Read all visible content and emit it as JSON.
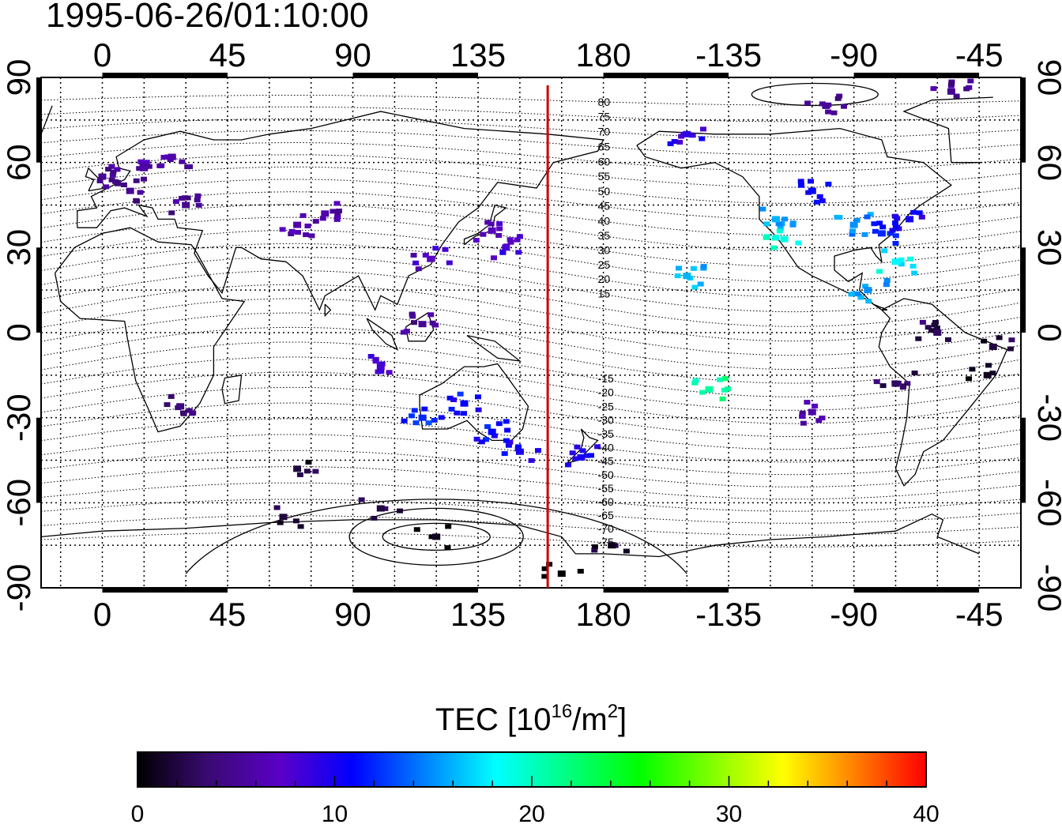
{
  "title": "1995-06-26/01:10:00",
  "colorbar": {
    "label_prefix": "TEC  [10",
    "label_exp1": "16",
    "label_mid": "/m",
    "label_exp2": "2",
    "label_suffix": "]",
    "ticks": [
      "0",
      "10",
      "20",
      "30",
      "40"
    ],
    "stops": [
      "#000000",
      "#3a0a73",
      "#5a00c8",
      "#0000ff",
      "#0080ff",
      "#00ffff",
      "#00ff80",
      "#00ff00",
      "#80ff00",
      "#ffff00",
      "#ff8000",
      "#ff0000"
    ]
  },
  "map": {
    "lon_ticks": [
      "0",
      "45",
      "90",
      "135",
      "180",
      "-135",
      "-90",
      "-45"
    ],
    "lat_ticks_left": [
      "90",
      "60",
      "30",
      "0",
      "-30",
      "-60",
      "-90"
    ],
    "lat_ticks_right": [
      "90",
      "60",
      "30",
      "0",
      "-30",
      "-60",
      "-90"
    ],
    "contour_labels": [
      "80",
      "75",
      "70",
      "65",
      "60",
      "55",
      "50",
      "45",
      "40",
      "35",
      "30",
      "25",
      "20",
      "15",
      "-15",
      "-20",
      "-25",
      "-30",
      "-35",
      "-40",
      "-45",
      "-50",
      "-55",
      "-60",
      "-65",
      "-70",
      "-75"
    ],
    "terminator_color": "#cc0000",
    "terminator_lon": 160
  },
  "chart_data": {
    "type": "heatmap",
    "title": "1995-06-26/01:10:00",
    "colorbar_label": "TEC [10^16/m^2]",
    "color_range": [
      0,
      40
    ],
    "xlim": [
      -22,
      330
    ],
    "ylim": [
      -90,
      90
    ],
    "observations": [
      {
        "lon": 0,
        "lat": 55,
        "tec": 5
      },
      {
        "lon": 10,
        "lat": 50,
        "tec": 5
      },
      {
        "lon": 15,
        "lat": 58,
        "tec": 6
      },
      {
        "lon": 25,
        "lat": 62,
        "tec": 6
      },
      {
        "lon": 30,
        "lat": 45,
        "tec": 5
      },
      {
        "lon": 70,
        "lat": 38,
        "tec": 6
      },
      {
        "lon": 80,
        "lat": 42,
        "tec": 6
      },
      {
        "lon": 28,
        "lat": -26,
        "tec": 4
      },
      {
        "lon": 70,
        "lat": -48,
        "tec": 2
      },
      {
        "lon": 65,
        "lat": -65,
        "tec": 2
      },
      {
        "lon": 100,
        "lat": -62,
        "tec": 2
      },
      {
        "lon": 120,
        "lat": -72,
        "tec": 1
      },
      {
        "lon": 165,
        "lat": -85,
        "tec": 0
      },
      {
        "lon": 183,
        "lat": -75,
        "tec": 1
      },
      {
        "lon": 140,
        "lat": 36,
        "tec": 7
      },
      {
        "lon": 145,
        "lat": 30,
        "tec": 8
      },
      {
        "lon": 118,
        "lat": 26,
        "tec": 7
      },
      {
        "lon": 115,
        "lat": 3,
        "tec": 5
      },
      {
        "lon": 100,
        "lat": -12,
        "tec": 8
      },
      {
        "lon": 115,
        "lat": -30,
        "tec": 12
      },
      {
        "lon": 130,
        "lat": -25,
        "tec": 11
      },
      {
        "lon": 140,
        "lat": -35,
        "tec": 11
      },
      {
        "lon": 150,
        "lat": -42,
        "tec": 10
      },
      {
        "lon": 172,
        "lat": -44,
        "tec": 10
      },
      {
        "lon": 210,
        "lat": 70,
        "tec": 9
      },
      {
        "lon": 210,
        "lat": 20,
        "tec": 16
      },
      {
        "lon": 218,
        "lat": -20,
        "tec": 21
      },
      {
        "lon": 242,
        "lat": 40,
        "tec": 16
      },
      {
        "lon": 245,
        "lat": 33,
        "tec": 19
      },
      {
        "lon": 255,
        "lat": 50,
        "tec": 11
      },
      {
        "lon": 270,
        "lat": 38,
        "tec": 15
      },
      {
        "lon": 280,
        "lat": 35,
        "tec": 12
      },
      {
        "lon": 290,
        "lat": 40,
        "tec": 10
      },
      {
        "lon": 285,
        "lat": 25,
        "tec": 18
      },
      {
        "lon": 275,
        "lat": 15,
        "tec": 15
      },
      {
        "lon": 260,
        "lat": 80,
        "tec": 5
      },
      {
        "lon": 305,
        "lat": 85,
        "tec": 5
      },
      {
        "lon": 300,
        "lat": 0,
        "tec": 3
      },
      {
        "lon": 320,
        "lat": -5,
        "tec": 2
      },
      {
        "lon": 318,
        "lat": -15,
        "tec": 1
      },
      {
        "lon": 285,
        "lat": -18,
        "tec": 3
      },
      {
        "lon": 255,
        "lat": -28,
        "tec": 6
      }
    ]
  }
}
